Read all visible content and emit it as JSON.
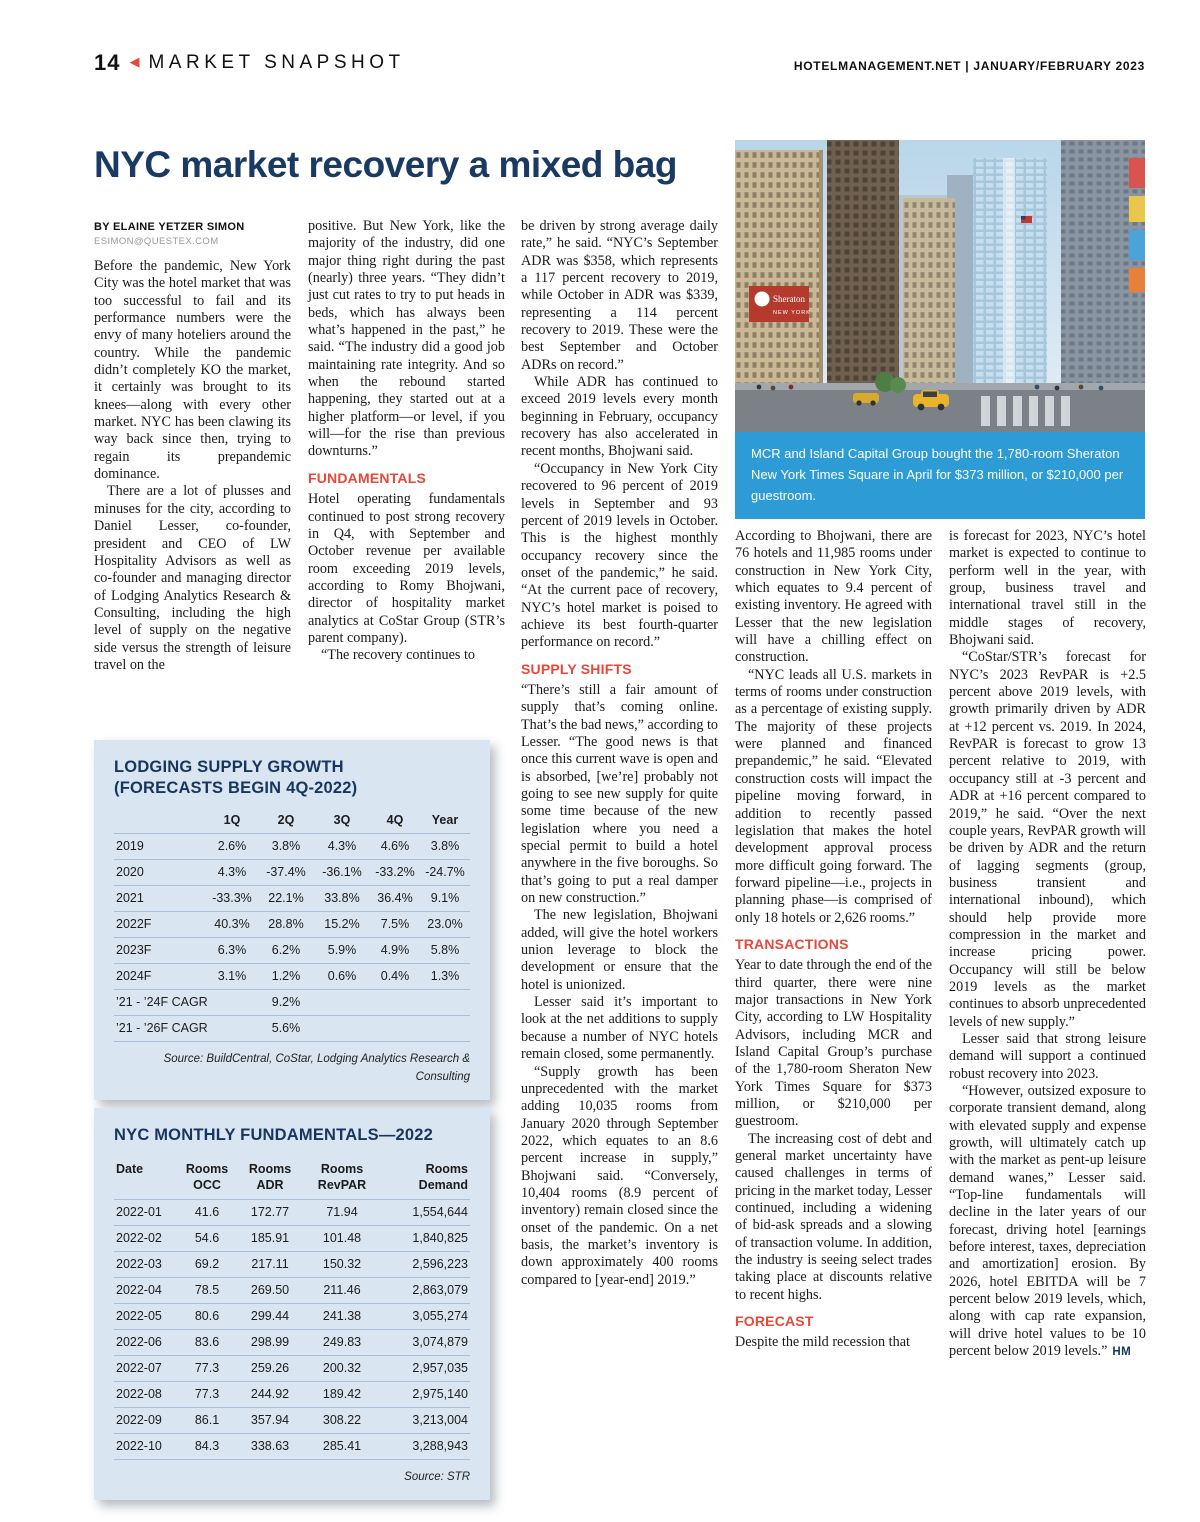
{
  "colors": {
    "accent_red": "#e8473a",
    "headline_navy": "#1b3a63",
    "caption_blue": "#2d9cd6",
    "table_bg": "#d9e5f1"
  },
  "header": {
    "page_number": "14",
    "arrow_icon": "◀",
    "section_title": "MARKET SNAPSHOT",
    "site": "HOTELMANAGEMENT.NET",
    "separator": "|",
    "issue": "JANUARY/FEBRUARY 2023"
  },
  "article": {
    "headline": "NYC market recovery a mixed bag",
    "byline": "BY ELAINE YETZER SIMON",
    "byline_email": "ESIMON@QUESTEX.COM",
    "end_mark": "HM",
    "headings": {
      "fundamentals": "FUNDAMENTALS",
      "supply_shifts": "SUPPLY SHIFTS",
      "transactions": "TRANSACTIONS",
      "forecast": "FORECAST"
    },
    "col1": [
      "Before the pandemic, New York City was the hotel market that was too successful to fail and its performance numbers were the envy of many hoteliers around the country. While the pandemic didn’t completely KO the market, it certainly was brought to its knees—along with every other market. NYC has been clawing its way back since then, trying to regain its prepandemic dominance.",
      "There are a lot of plusses and minuses for the city, according to Daniel Lesser, co-founder, president and CEO of LW Hospitality Advisors as well as co-founder and managing director of Lodging Analytics Research & Consulting, including the high level of supply on the negative side versus the strength of leisure travel on the"
    ],
    "col2": [
      "positive. But New York, like the majority of the industry, did one major thing right during the past (nearly) three years. “They didn’t just cut rates to try to put heads in beds, which has always been what’s happened in the past,” he said. “The industry did a good job maintaining rate integrity. And so when the rebound started happening, they started out at a higher platform—or level, if you will—for the rise than previous downturns.”",
      "Hotel operating fundamentals continued to post strong recovery in Q4, with September and October revenue per available room exceeding 2019 levels, according to Romy Bhojwani, director of hospitality market analytics at CoStar Group (STR’s parent company).",
      "“The recovery continues to"
    ],
    "col3": [
      "be driven by strong average daily rate,” he said. “NYC’s September ADR was $358, which represents a 117 percent recovery to 2019, while October in ADR was $339, representing a 114 percent recovery to 2019. These were the best September and October ADRs on record.”",
      "While ADR has continued to exceed 2019 levels every month beginning in February, occupancy recovery has also accelerated in recent months, Bhojwani said.",
      "“Occupancy in New York City recovered to 96 percent of 2019 levels in September and 93 percent of 2019 levels in October. This is the highest monthly occupancy recovery since the onset of the pandemic,” he said. “At the current pace of recovery, NYC’s hotel market is poised to achieve its best fourth-quarter performance on record.”",
      "“There’s still a fair amount of supply that’s coming online. That’s the bad news,” according to Lesser. “The good news is that once this current wave is open and is absorbed, [we’re] probably not going to see new supply for quite some time because of the new legislation where you need a special permit to build a hotel anywhere in the five boroughs. So that’s going to put a real damper on new construction.”",
      "The new legislation, Bhojwani added, will give the hotel workers union leverage to block the development or ensure that the hotel is unionized.",
      "Lesser said it’s important to look at the net additions to supply because a number of NYC hotels remain closed, some permanently.",
      "“Supply growth has been unprecedented with the market adding 10,035 rooms from January 2020 through September 2022, which equates to an 8.6 percent increase in supply,” Bhojwani said. “Conversely, 10,404 rooms (8.9 percent of inventory) remain closed since the onset of the pandemic. On a net basis, the market’s inventory is down approximately 400 rooms compared to [year-end] 2019.”"
    ],
    "col4": [
      "According to Bhojwani, there are 76 hotels and 11,985 rooms under construction in New York City, which equates to 9.4 percent of existing inventory. He agreed with Lesser that the new legislation will have a chilling effect on construction.",
      "“NYC leads all U.S. markets in terms of rooms under construction as a percentage of existing supply. The majority of these projects were planned and financed prepandemic,” he said. “Elevated construction costs will impact the pipeline moving forward, in addition to recently passed legislation that makes the hotel development approval process more difficult going forward. The forward pipeline—i.e., projects in planning phase—is comprised of only 18 hotels or 2,626 rooms.”",
      "Year to date through the end of the third quarter, there were nine major transactions in New York City, according to LW Hospitality Advisors, including MCR and Island Capital Group’s purchase of the 1,780-room Sheraton New York Times Square for $373 million, or $210,000 per guestroom.",
      "The increasing cost of debt and general market uncertainty have caused challenges in terms of pricing in the market today, Lesser continued, including a widening of bid-ask spreads and a slowing of transaction volume. In addition, the industry is seeing select trades taking place at discounts relative to recent highs.",
      "Despite the mild recession that"
    ],
    "col5": [
      "is forecast for 2023, NYC’s hotel market is expected to continue to perform well in the year, with group, business travel and international travel still in the middle stages of recovery, Bhojwani said.",
      "“CoStar/STR’s forecast for NYC’s 2023 RevPAR is +2.5 percent above 2019 levels, with growth primarily driven by ADR at +12 percent vs. 2019. In 2024, RevPAR is forecast to grow 13 percent relative to 2019, with occupancy still at -3 percent and ADR at +16 percent compared to 2019,” he said. “Over the next couple years, RevPAR growth will be driven by ADR and the return of lagging segments (group, business transient and international inbound), which should help provide more compression in the market and increase pricing power. Occupancy will still be below 2019 levels as the market continues to absorb unprecedented levels of new supply.”",
      "Lesser said that strong leisure demand will support a continued robust recovery into 2023.",
      "“However, outsized exposure to corporate transient demand, along with elevated supply and expense growth, will ultimately catch up with the market as pent-up leisure demand wanes,” Lesser said. “Top-line fundamentals will decline in the later years of our forecast, driving hotel [earnings before interest, taxes, depreciation and amortization] erosion. By 2026, hotel EBITDA will be 7 percent below 2019 levels, which, along with cap rate expansion, will drive hotel values to be 10 percent below 2019 levels.”"
    ]
  },
  "photo": {
    "sign_text": "Sheraton",
    "sign_subtext": "NEW YORK",
    "caption": "MCR and Island Capital Group bought the 1,780-room Sheraton New York Times Square in April for $373 million, or $210,000 per guestroom."
  },
  "supply_table": {
    "title_line1": "LODGING SUPPLY GROWTH",
    "title_line2": "(FORECASTS BEGIN 4Q-2022)",
    "columns": [
      "",
      "1Q",
      "2Q",
      "3Q",
      "4Q",
      "Year"
    ],
    "rows": [
      [
        "2019",
        "2.6%",
        "3.8%",
        "4.3%",
        "4.6%",
        "3.8%"
      ],
      [
        "2020",
        "4.3%",
        "-37.4%",
        "-36.1%",
        "-33.2%",
        "-24.7%"
      ],
      [
        "2021",
        "-33.3%",
        "22.1%",
        "33.8%",
        "36.4%",
        "9.1%"
      ],
      [
        "2022F",
        "40.3%",
        "28.8%",
        "15.2%",
        "7.5%",
        "23.0%"
      ],
      [
        "2023F",
        "6.3%",
        "6.2%",
        "5.9%",
        "4.9%",
        "5.8%"
      ],
      [
        "2024F",
        "3.1%",
        "1.2%",
        "0.6%",
        "0.4%",
        "1.3%"
      ],
      [
        "’21 - ’24F CAGR",
        "",
        "9.2%",
        "",
        "",
        ""
      ],
      [
        "’21 - ’26F CAGR",
        "",
        "5.6%",
        "",
        "",
        ""
      ]
    ],
    "source": "Source: BuildCentral, CoStar, Lodging Analytics Research & Consulting"
  },
  "fundamentals_table": {
    "title": "NYC MONTHLY FUNDAMENTALS—2022",
    "columns": [
      [
        "Date",
        ""
      ],
      [
        "Rooms",
        "OCC"
      ],
      [
        "Rooms",
        "ADR"
      ],
      [
        "Rooms",
        "RevPAR"
      ],
      [
        "Rooms",
        "Demand"
      ]
    ],
    "rows": [
      [
        "2022-01",
        "41.6",
        "172.77",
        "71.94",
        "1,554,644"
      ],
      [
        "2022-02",
        "54.6",
        "185.91",
        "101.48",
        "1,840,825"
      ],
      [
        "2022-03",
        "69.2",
        "217.11",
        "150.32",
        "2,596,223"
      ],
      [
        "2022-04",
        "78.5",
        "269.50",
        "211.46",
        "2,863,079"
      ],
      [
        "2022-05",
        "80.6",
        "299.44",
        "241.38",
        "3,055,274"
      ],
      [
        "2022-06",
        "83.6",
        "298.99",
        "249.83",
        "3,074,879"
      ],
      [
        "2022-07",
        "77.3",
        "259.26",
        "200.32",
        "2,957,035"
      ],
      [
        "2022-08",
        "77.3",
        "244.92",
        "189.42",
        "2,975,140"
      ],
      [
        "2022-09",
        "86.1",
        "357.94",
        "308.22",
        "3,213,004"
      ],
      [
        "2022-10",
        "84.3",
        "338.63",
        "285.41",
        "3,288,943"
      ]
    ],
    "source": "Source: STR"
  }
}
